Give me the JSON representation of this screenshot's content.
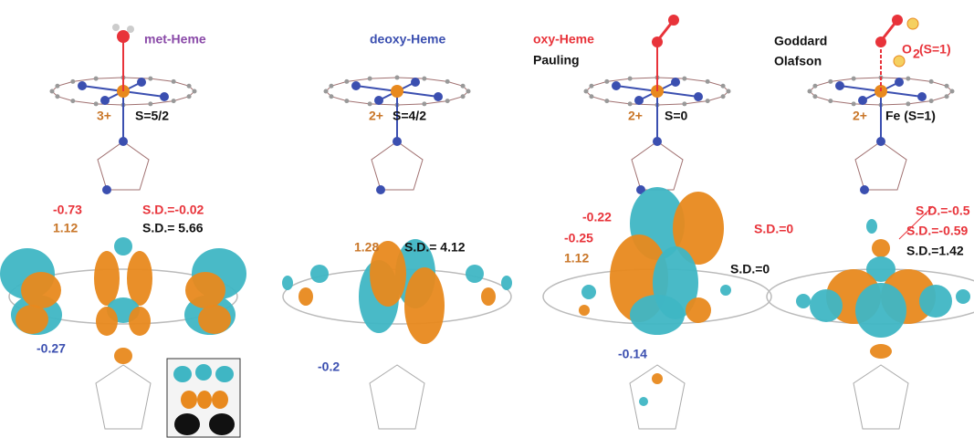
{
  "panels": [
    {
      "texts": [
        "met-Heme",
        "3+",
        "S=5/2",
        "-0.73",
        "S.D.=-0.02",
        "1.12",
        "S.D.= 5.66",
        "-0.27"
      ]
    },
    {
      "texts": [
        "deoxy-Heme",
        "2+",
        "S=4/2",
        "1.28",
        "S.D.= 4.12",
        "-0.2"
      ]
    },
    {
      "texts": [
        "oxy-Heme",
        "Pauling",
        "2+",
        "S=0",
        "-0.22",
        "-0.25",
        "1.12",
        "S.D.=0",
        "S.D.=0",
        "-0.14"
      ]
    },
    {
      "texts": [
        "Goddard",
        "Olafson",
        "O",
        "2",
        "(S=1)",
        "2+",
        "Fe (S=1)",
        "S.D.=-0.5",
        "S.D.=-0.59",
        "S.D.=1.42"
      ]
    }
  ]
}
